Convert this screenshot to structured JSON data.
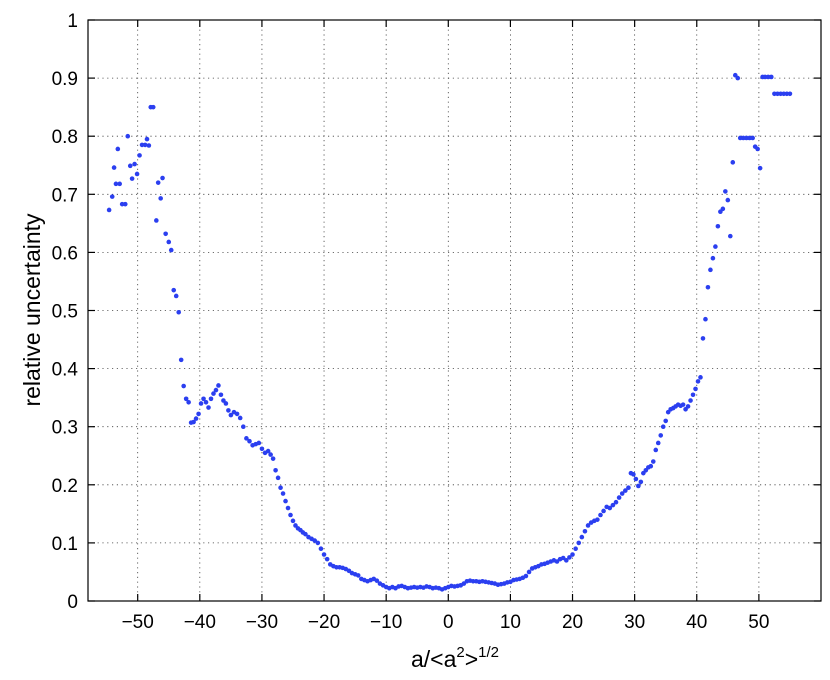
{
  "chart_data": {
    "type": "scatter",
    "title": "",
    "xlabel": "a/<a",
    "xlabel_sup1": "2",
    "xlabel_mid": ">",
    "xlabel_sup2": "1/2",
    "ylabel": "relative uncertainty",
    "xlim": [
      -58,
      60
    ],
    "ylim": [
      0,
      1
    ],
    "xticks": [
      -50,
      -40,
      -30,
      -20,
      -10,
      0,
      10,
      20,
      30,
      40,
      50
    ],
    "xtick_labels": [
      "−50",
      "−40",
      "−30",
      "−20",
      "−10",
      "0",
      "10",
      "20",
      "30",
      "40",
      "50"
    ],
    "yticks": [
      0,
      0.1,
      0.2,
      0.3,
      0.4,
      0.5,
      0.6,
      0.7,
      0.8,
      0.9,
      1
    ],
    "ytick_labels": [
      "0",
      "0.1",
      "0.2",
      "0.3",
      "0.4",
      "0.5",
      "0.6",
      "0.7",
      "0.8",
      "0.9",
      "1"
    ],
    "grid": true,
    "marker_color": "#2b3ff0",
    "series": [
      {
        "points": [
          [
            -54.6,
            0.673
          ],
          [
            -54.1,
            0.696
          ],
          [
            -53.8,
            0.746
          ],
          [
            -53.5,
            0.718
          ],
          [
            -53.2,
            0.778
          ],
          [
            -52.9,
            0.718
          ],
          [
            -52.5,
            0.683
          ],
          [
            -52.0,
            0.683
          ],
          [
            -51.6,
            0.8
          ],
          [
            -51.2,
            0.749
          ],
          [
            -50.9,
            0.727
          ],
          [
            -50.5,
            0.752
          ],
          [
            -50.1,
            0.735
          ],
          [
            -49.7,
            0.767
          ],
          [
            -49.3,
            0.785
          ],
          [
            -48.8,
            0.785
          ],
          [
            -48.5,
            0.795
          ],
          [
            -48.2,
            0.784
          ],
          [
            -47.9,
            0.85
          ],
          [
            -47.5,
            0.85
          ],
          [
            -47.0,
            0.655
          ],
          [
            -46.7,
            0.72
          ],
          [
            -46.3,
            0.693
          ],
          [
            -46.0,
            0.728
          ],
          [
            -45.5,
            0.632
          ],
          [
            -45.0,
            0.618
          ],
          [
            -44.6,
            0.604
          ],
          [
            -44.2,
            0.535
          ],
          [
            -43.8,
            0.525
          ],
          [
            -43.4,
            0.497
          ],
          [
            -43.0,
            0.415
          ],
          [
            -42.6,
            0.37
          ],
          [
            -42.2,
            0.348
          ],
          [
            -41.8,
            0.342
          ],
          [
            -41.4,
            0.307
          ],
          [
            -41.0,
            0.308
          ],
          [
            -40.6,
            0.314
          ],
          [
            -40.2,
            0.322
          ],
          [
            -39.8,
            0.34
          ],
          [
            -39.4,
            0.348
          ],
          [
            -39.0,
            0.342
          ],
          [
            -38.6,
            0.333
          ],
          [
            -38.2,
            0.348
          ],
          [
            -37.8,
            0.357
          ],
          [
            -37.4,
            0.363
          ],
          [
            -37.0,
            0.371
          ],
          [
            -36.6,
            0.355
          ],
          [
            -36.2,
            0.345
          ],
          [
            -35.8,
            0.34
          ],
          [
            -35.4,
            0.328
          ],
          [
            -35.0,
            0.32
          ],
          [
            -34.5,
            0.325
          ],
          [
            -34.0,
            0.322
          ],
          [
            -33.5,
            0.315
          ],
          [
            -33.0,
            0.3
          ],
          [
            -32.5,
            0.28
          ],
          [
            -32.0,
            0.275
          ],
          [
            -31.5,
            0.268
          ],
          [
            -31.0,
            0.27
          ],
          [
            -30.5,
            0.272
          ],
          [
            -30.0,
            0.262
          ],
          [
            -29.5,
            0.255
          ],
          [
            -29.0,
            0.258
          ],
          [
            -28.6,
            0.252
          ],
          [
            -28.2,
            0.245
          ],
          [
            -27.8,
            0.225
          ],
          [
            -27.4,
            0.212
          ],
          [
            -27.0,
            0.195
          ],
          [
            -26.6,
            0.185
          ],
          [
            -26.2,
            0.172
          ],
          [
            -25.8,
            0.16
          ],
          [
            -25.4,
            0.148
          ],
          [
            -25.0,
            0.138
          ],
          [
            -24.6,
            0.13
          ],
          [
            -24.2,
            0.125
          ],
          [
            -23.8,
            0.122
          ],
          [
            -23.4,
            0.118
          ],
          [
            -23.0,
            0.115
          ],
          [
            -22.5,
            0.11
          ],
          [
            -22.0,
            0.107
          ],
          [
            -21.5,
            0.104
          ],
          [
            -21.0,
            0.1
          ],
          [
            -20.5,
            0.09
          ],
          [
            -20.0,
            0.08
          ],
          [
            -19.5,
            0.072
          ],
          [
            -19.0,
            0.063
          ],
          [
            -18.5,
            0.06
          ],
          [
            -18.0,
            0.058
          ],
          [
            -17.5,
            0.058
          ],
          [
            -17.0,
            0.057
          ],
          [
            -16.5,
            0.055
          ],
          [
            -16.0,
            0.052
          ],
          [
            -15.5,
            0.048
          ],
          [
            -15.0,
            0.046
          ],
          [
            -14.5,
            0.044
          ],
          [
            -14.0,
            0.038
          ],
          [
            -13.5,
            0.036
          ],
          [
            -13.0,
            0.034
          ],
          [
            -12.5,
            0.036
          ],
          [
            -12.0,
            0.038
          ],
          [
            -11.5,
            0.035
          ],
          [
            -11.0,
            0.03
          ],
          [
            -10.5,
            0.027
          ],
          [
            -10.0,
            0.024
          ],
          [
            -9.5,
            0.022
          ],
          [
            -9.0,
            0.024
          ],
          [
            -8.5,
            0.022
          ],
          [
            -8.0,
            0.025
          ],
          [
            -7.5,
            0.026
          ],
          [
            -7.0,
            0.024
          ],
          [
            -6.5,
            0.022
          ],
          [
            -6.0,
            0.023
          ],
          [
            -5.5,
            0.024
          ],
          [
            -5.0,
            0.023
          ],
          [
            -4.5,
            0.024
          ],
          [
            -4.0,
            0.023
          ],
          [
            -3.5,
            0.025
          ],
          [
            -3.0,
            0.024
          ],
          [
            -2.5,
            0.022
          ],
          [
            -2.0,
            0.023
          ],
          [
            -1.5,
            0.022
          ],
          [
            -1.0,
            0.02
          ],
          [
            -0.5,
            0.022
          ],
          [
            0.0,
            0.024
          ],
          [
            0.5,
            0.026
          ],
          [
            1.0,
            0.025
          ],
          [
            1.5,
            0.026
          ],
          [
            2.0,
            0.027
          ],
          [
            2.5,
            0.03
          ],
          [
            3.0,
            0.034
          ],
          [
            3.5,
            0.035
          ],
          [
            4.0,
            0.034
          ],
          [
            4.5,
            0.034
          ],
          [
            5.0,
            0.033
          ],
          [
            5.5,
            0.034
          ],
          [
            6.0,
            0.033
          ],
          [
            6.5,
            0.032
          ],
          [
            7.0,
            0.031
          ],
          [
            7.5,
            0.03
          ],
          [
            8.0,
            0.028
          ],
          [
            8.5,
            0.029
          ],
          [
            9.0,
            0.03
          ],
          [
            9.5,
            0.032
          ],
          [
            10.0,
            0.033
          ],
          [
            10.5,
            0.036
          ],
          [
            11.0,
            0.037
          ],
          [
            11.5,
            0.038
          ],
          [
            12.0,
            0.04
          ],
          [
            12.5,
            0.043
          ],
          [
            13.0,
            0.05
          ],
          [
            13.5,
            0.056
          ],
          [
            14.0,
            0.058
          ],
          [
            14.5,
            0.06
          ],
          [
            15.0,
            0.063
          ],
          [
            15.5,
            0.064
          ],
          [
            16.0,
            0.066
          ],
          [
            16.5,
            0.068
          ],
          [
            17.0,
            0.07
          ],
          [
            17.5,
            0.068
          ],
          [
            18.0,
            0.072
          ],
          [
            18.5,
            0.074
          ],
          [
            19.0,
            0.07
          ],
          [
            19.5,
            0.075
          ],
          [
            20.0,
            0.08
          ],
          [
            20.5,
            0.09
          ],
          [
            21.0,
            0.1
          ],
          [
            21.5,
            0.11
          ],
          [
            22.0,
            0.12
          ],
          [
            22.5,
            0.13
          ],
          [
            23.0,
            0.135
          ],
          [
            23.5,
            0.138
          ],
          [
            24.0,
            0.14
          ],
          [
            24.5,
            0.148
          ],
          [
            25.0,
            0.155
          ],
          [
            25.5,
            0.162
          ],
          [
            26.0,
            0.16
          ],
          [
            26.5,
            0.165
          ],
          [
            27.0,
            0.17
          ],
          [
            27.5,
            0.178
          ],
          [
            28.0,
            0.185
          ],
          [
            28.5,
            0.19
          ],
          [
            29.0,
            0.195
          ],
          [
            29.4,
            0.22
          ],
          [
            29.8,
            0.218
          ],
          [
            30.2,
            0.21
          ],
          [
            30.6,
            0.198
          ],
          [
            31.0,
            0.205
          ],
          [
            31.4,
            0.22
          ],
          [
            31.8,
            0.225
          ],
          [
            32.2,
            0.23
          ],
          [
            32.6,
            0.232
          ],
          [
            33.0,
            0.24
          ],
          [
            33.4,
            0.26
          ],
          [
            33.8,
            0.272
          ],
          [
            34.2,
            0.285
          ],
          [
            34.6,
            0.3
          ],
          [
            35.0,
            0.31
          ],
          [
            35.4,
            0.325
          ],
          [
            35.8,
            0.33
          ],
          [
            36.2,
            0.332
          ],
          [
            36.6,
            0.335
          ],
          [
            37.0,
            0.338
          ],
          [
            37.4,
            0.336
          ],
          [
            37.8,
            0.338
          ],
          [
            38.2,
            0.33
          ],
          [
            38.6,
            0.335
          ],
          [
            39.0,
            0.345
          ],
          [
            39.4,
            0.355
          ],
          [
            39.8,
            0.365
          ],
          [
            40.2,
            0.378
          ],
          [
            40.6,
            0.385
          ],
          [
            41.0,
            0.452
          ],
          [
            41.4,
            0.485
          ],
          [
            41.8,
            0.54
          ],
          [
            42.2,
            0.57
          ],
          [
            42.6,
            0.59
          ],
          [
            43.0,
            0.61
          ],
          [
            43.4,
            0.645
          ],
          [
            43.8,
            0.67
          ],
          [
            44.2,
            0.675
          ],
          [
            44.6,
            0.705
          ],
          [
            45.0,
            0.69
          ],
          [
            45.4,
            0.628
          ],
          [
            45.8,
            0.755
          ],
          [
            46.2,
            0.905
          ],
          [
            46.6,
            0.9
          ],
          [
            47.0,
            0.797
          ],
          [
            47.5,
            0.797
          ],
          [
            48.0,
            0.797
          ],
          [
            48.5,
            0.797
          ],
          [
            49.0,
            0.797
          ],
          [
            49.4,
            0.782
          ],
          [
            49.8,
            0.778
          ],
          [
            50.2,
            0.745
          ],
          [
            50.6,
            0.902
          ],
          [
            51.0,
            0.902
          ],
          [
            51.5,
            0.902
          ],
          [
            52.0,
            0.902
          ],
          [
            52.5,
            0.873
          ],
          [
            53.0,
            0.873
          ],
          [
            53.5,
            0.873
          ],
          [
            54.0,
            0.873
          ],
          [
            54.5,
            0.873
          ],
          [
            55.0,
            0.873
          ]
        ]
      }
    ]
  }
}
